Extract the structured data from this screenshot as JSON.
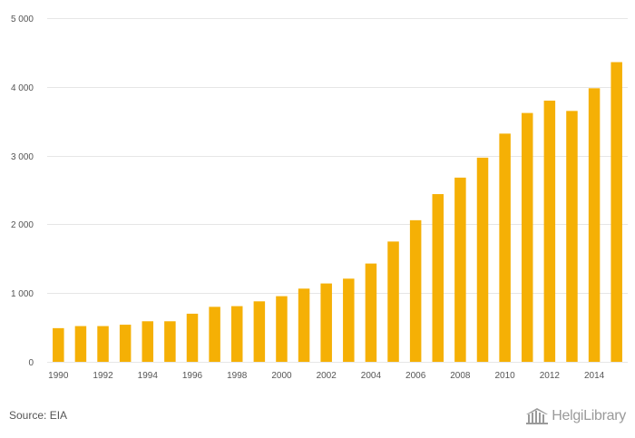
{
  "chart_data": {
    "type": "bar",
    "categories": [
      "1990",
      "1991",
      "1992",
      "1993",
      "1994",
      "1995",
      "1996",
      "1997",
      "1998",
      "1999",
      "2000",
      "2001",
      "2002",
      "2003",
      "2004",
      "2005",
      "2006",
      "2007",
      "2008",
      "2009",
      "2010",
      "2011",
      "2012",
      "2013",
      "2014",
      "2015"
    ],
    "x_tick_labels": [
      "1990",
      "1992",
      "1994",
      "1996",
      "1998",
      "2000",
      "2002",
      "2004",
      "2006",
      "2008",
      "2010",
      "2012",
      "2014"
    ],
    "values": [
      490,
      520,
      520,
      540,
      590,
      590,
      700,
      800,
      810,
      880,
      955,
      1065,
      1140,
      1210,
      1430,
      1750,
      2060,
      2440,
      2680,
      2970,
      3320,
      3620,
      3800,
      3650,
      3980,
      4360
    ],
    "ylim": [
      0,
      5000
    ],
    "y_ticks": [
      0,
      1000,
      2000,
      3000,
      4000,
      5000
    ],
    "y_tick_labels": [
      "0",
      "1 000",
      "2 000",
      "3 000",
      "4 000",
      "5 000"
    ],
    "title": "",
    "xlabel": "",
    "ylabel": "",
    "grid": true,
    "bar_color": "#f5b005",
    "grid_color": "#e6e6e6"
  },
  "footer": {
    "source": "Source: EIA",
    "brand_name": "HelgiLibrary"
  }
}
